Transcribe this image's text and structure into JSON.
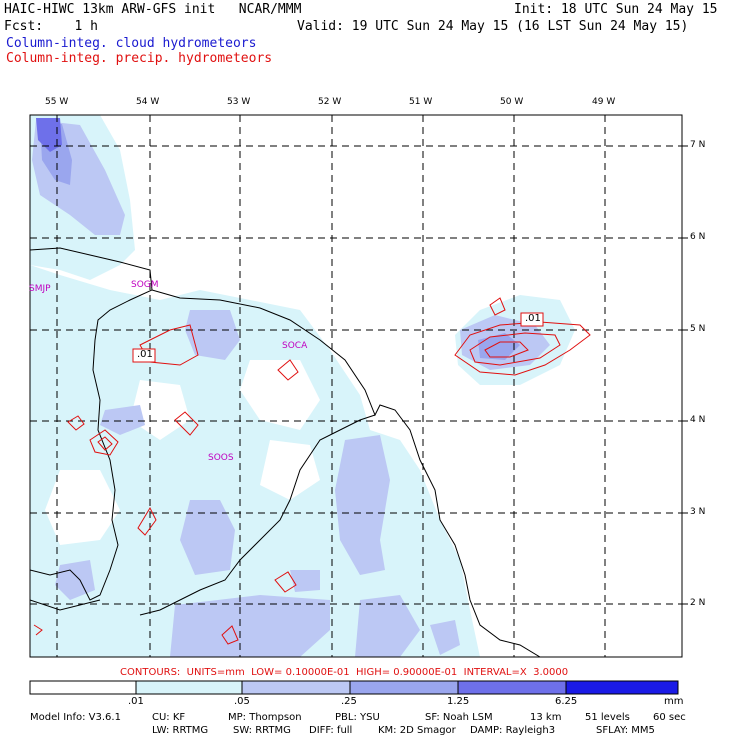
{
  "header": {
    "title_left": "HAIC-HIWC 13km ARW-GFS init   NCAR/MMM",
    "init": "Init: 18 UTC Sun 24 May 15",
    "fcst": "Fcst:    1 h",
    "valid": "Valid: 19 UTC Sun 24 May 15 (16 LST Sun 24 May 15)",
    "field1": "Column-integ. cloud hydrometeors",
    "field2": "Column-integ. precip. hydrometeors",
    "field1_color": "#1a1ad0",
    "field2_color": "#e01010"
  },
  "axes": {
    "lon_labels": [
      "55 W",
      "54 W",
      "53 W",
      "52 W",
      "51 W",
      "50 W",
      "49 W"
    ],
    "lat_labels": [
      "7 N",
      "6 N",
      "5 N",
      "4 N",
      "3 N",
      "2 N"
    ]
  },
  "stations": [
    "SMJP",
    "SOGM",
    "SOCA",
    "SOOS"
  ],
  "contour_labels": [
    ".01",
    ".01"
  ],
  "contour_info": "CONTOURS:  UNITS=mm  LOW= 0.10000E-01  HIGH= 0.90000E-01  INTERVAL=X  3.0000",
  "colorbar": {
    "labels": [
      ".01",
      ".05",
      ".25",
      "1.25",
      "6.25"
    ],
    "unit": "mm",
    "colors": [
      "#ffffff",
      "#d8f4fa",
      "#bcc8f4",
      "#9aa6ee",
      "#6e70ea",
      "#1a1ae6"
    ]
  },
  "footer": {
    "line1": [
      "Model Info: V3.6.1",
      "CU: KF",
      "MP: Thompson",
      "PBL: YSU",
      "SF: Noah LSM",
      "13 km",
      "51 levels",
      "60 sec"
    ],
    "line2": [
      "LW: RRTMG",
      "SW: RRTMG",
      "DIFF: full",
      "KM: 2D Smagor",
      "DAMP: Rayleigh3",
      "SFLAY: MM5"
    ]
  }
}
